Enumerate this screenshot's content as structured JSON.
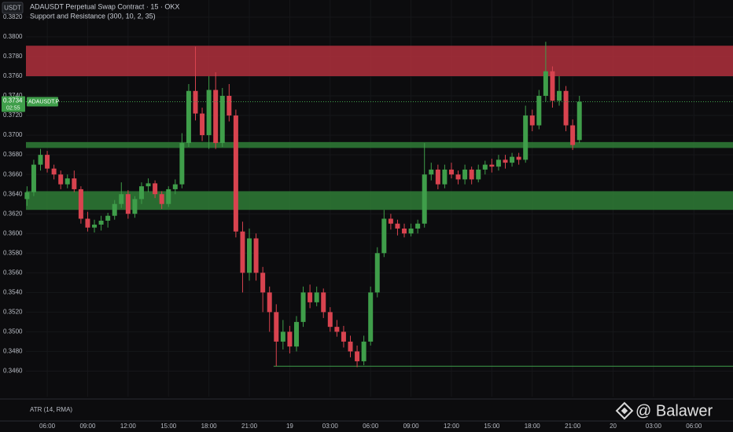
{
  "chart_data": {
    "type": "candlestick",
    "currency": "USDT",
    "title": "ADAUSDT Perpetual Swap Contract · 15 · OKX",
    "subtitle": "Support and Resistance (300, 10, 2, 35)",
    "symbol": "ADAUSDT.P",
    "last_price": 0.3734,
    "countdown": "02:55",
    "indicator": "ATR (14, RMA)",
    "watermark": "@ Balawer",
    "up_color": "#3f9e4a",
    "down_color": "#d8434f",
    "ylim": [
      0.3434,
      0.38375
    ],
    "yticks": [
      {
        "value": 0.346,
        "label": "0.3460"
      },
      {
        "value": 0.348,
        "label": "0.3480"
      },
      {
        "value": 0.35,
        "label": "0.3500"
      },
      {
        "value": 0.352,
        "label": "0.3520"
      },
      {
        "value": 0.354,
        "label": "0.3540"
      },
      {
        "value": 0.356,
        "label": "0.3560"
      },
      {
        "value": 0.358,
        "label": "0.3580"
      },
      {
        "value": 0.36,
        "label": "0.3600"
      },
      {
        "value": 0.362,
        "label": "0.3620"
      },
      {
        "value": 0.364,
        "label": "0.3640"
      },
      {
        "value": 0.366,
        "label": "0.3660"
      },
      {
        "value": 0.368,
        "label": "0.3680"
      },
      {
        "value": 0.37,
        "label": "0.3700"
      },
      {
        "value": 0.372,
        "label": "0.3720"
      },
      {
        "value": 0.374,
        "label": "0.3740"
      },
      {
        "value": 0.376,
        "label": "0.3760"
      },
      {
        "value": 0.378,
        "label": "0.3780"
      },
      {
        "value": 0.38,
        "label": "0.3800"
      },
      {
        "value": 0.382,
        "label": "0.3820"
      }
    ],
    "xlim": [
      -1.58,
      50.9
    ],
    "xticks": [
      {
        "value": 0,
        "label": "06:00"
      },
      {
        "value": 3,
        "label": "09:00"
      },
      {
        "value": 6,
        "label": "12:00"
      },
      {
        "value": 9,
        "label": "15:00"
      },
      {
        "value": 12,
        "label": "18:00"
      },
      {
        "value": 15,
        "label": "21:00"
      },
      {
        "value": 18,
        "label": "19"
      },
      {
        "value": 21,
        "label": "03:00"
      },
      {
        "value": 24,
        "label": "06:00"
      },
      {
        "value": 27,
        "label": "09:00"
      },
      {
        "value": 30,
        "label": "12:00"
      },
      {
        "value": 33,
        "label": "15:00"
      },
      {
        "value": 36,
        "label": "18:00"
      },
      {
        "value": 39,
        "label": "21:00"
      },
      {
        "value": 42,
        "label": "20"
      },
      {
        "value": 45,
        "label": "03:00"
      },
      {
        "value": 48,
        "label": "06:00"
      }
    ],
    "zones": [
      {
        "low": 0.376,
        "high": 0.3791,
        "color": "#b0303c"
      },
      {
        "low": 0.3687,
        "high": 0.3693,
        "color": "#2f7d36"
      },
      {
        "low": 0.3624,
        "high": 0.3643,
        "color": "#2f7d36"
      }
    ],
    "support_line": {
      "value": 0.3465,
      "from": 16.8,
      "color": "#3f9e4a"
    },
    "candles": [
      [
        -1.5,
        0.3635,
        0.3648,
        0.3628,
        0.3642
      ],
      [
        -1,
        0.3642,
        0.3675,
        0.3638,
        0.367
      ],
      [
        -0.5,
        0.367,
        0.3686,
        0.3664,
        0.368
      ],
      [
        0,
        0.368,
        0.3684,
        0.3662,
        0.3666
      ],
      [
        0.5,
        0.3666,
        0.367,
        0.3655,
        0.366
      ],
      [
        1,
        0.366,
        0.3664,
        0.3645,
        0.365
      ],
      [
        1.5,
        0.365,
        0.366,
        0.3646,
        0.3656
      ],
      [
        2,
        0.3656,
        0.3664,
        0.3642,
        0.3645
      ],
      [
        2.5,
        0.3645,
        0.3648,
        0.361,
        0.3615
      ],
      [
        3,
        0.3615,
        0.3622,
        0.3602,
        0.3606
      ],
      [
        3.5,
        0.3606,
        0.3614,
        0.3601,
        0.3609
      ],
      [
        4,
        0.3609,
        0.3618,
        0.3603,
        0.3613
      ],
      [
        4.5,
        0.3613,
        0.3621,
        0.3606,
        0.3618
      ],
      [
        5,
        0.3618,
        0.3634,
        0.3614,
        0.363
      ],
      [
        5.5,
        0.363,
        0.3652,
        0.3626,
        0.364
      ],
      [
        6,
        0.364,
        0.3644,
        0.3615,
        0.362
      ],
      [
        6.5,
        0.362,
        0.3638,
        0.3616,
        0.3635
      ],
      [
        7,
        0.3635,
        0.3652,
        0.363,
        0.3648
      ],
      [
        7.5,
        0.3648,
        0.3656,
        0.3642,
        0.3651
      ],
      [
        8,
        0.3651,
        0.3654,
        0.3636,
        0.364
      ],
      [
        8.5,
        0.364,
        0.3643,
        0.3625,
        0.363
      ],
      [
        9,
        0.363,
        0.3648,
        0.3627,
        0.3645
      ],
      [
        9.5,
        0.3645,
        0.3655,
        0.364,
        0.365
      ],
      [
        10,
        0.365,
        0.3702,
        0.3646,
        0.3692
      ],
      [
        10.5,
        0.3692,
        0.3752,
        0.3688,
        0.3745
      ],
      [
        11,
        0.3745,
        0.379,
        0.3715,
        0.3722
      ],
      [
        11.5,
        0.3722,
        0.3728,
        0.3694,
        0.37
      ],
      [
        12,
        0.37,
        0.376,
        0.3686,
        0.3746
      ],
      [
        12.5,
        0.3746,
        0.3764,
        0.3686,
        0.3692
      ],
      [
        13,
        0.3692,
        0.3748,
        0.3688,
        0.374
      ],
      [
        13.5,
        0.374,
        0.3752,
        0.3714,
        0.372
      ],
      [
        14,
        0.372,
        0.3726,
        0.3596,
        0.3602
      ],
      [
        14.5,
        0.3602,
        0.3612,
        0.354,
        0.356
      ],
      [
        15,
        0.356,
        0.3605,
        0.3552,
        0.3595
      ],
      [
        15.5,
        0.3595,
        0.36,
        0.3552,
        0.356
      ],
      [
        16,
        0.356,
        0.3566,
        0.352,
        0.354
      ],
      [
        16.5,
        0.354,
        0.3546,
        0.35,
        0.352
      ],
      [
        17,
        0.352,
        0.3528,
        0.3465,
        0.349
      ],
      [
        17.5,
        0.349,
        0.3512,
        0.3482,
        0.35
      ],
      [
        18,
        0.35,
        0.3506,
        0.3478,
        0.3485
      ],
      [
        18.5,
        0.3485,
        0.3516,
        0.348,
        0.351
      ],
      [
        19,
        0.351,
        0.3546,
        0.3505,
        0.354
      ],
      [
        19.5,
        0.354,
        0.3548,
        0.3524,
        0.353
      ],
      [
        20,
        0.353,
        0.3546,
        0.3526,
        0.354
      ],
      [
        20.5,
        0.354,
        0.3544,
        0.3514,
        0.352
      ],
      [
        21,
        0.352,
        0.3525,
        0.35,
        0.3505
      ],
      [
        21.5,
        0.3505,
        0.3512,
        0.3495,
        0.35
      ],
      [
        22,
        0.35,
        0.3506,
        0.3484,
        0.349
      ],
      [
        22.5,
        0.349,
        0.3496,
        0.3474,
        0.348
      ],
      [
        23,
        0.348,
        0.3486,
        0.3464,
        0.347
      ],
      [
        23.5,
        0.347,
        0.3496,
        0.3466,
        0.349
      ],
      [
        24,
        0.349,
        0.3546,
        0.3486,
        0.354
      ],
      [
        24.5,
        0.354,
        0.3586,
        0.3535,
        0.358
      ],
      [
        25,
        0.358,
        0.3624,
        0.3576,
        0.3615
      ],
      [
        25.5,
        0.3615,
        0.362,
        0.3604,
        0.361
      ],
      [
        26,
        0.361,
        0.3614,
        0.3598,
        0.3605
      ],
      [
        26.5,
        0.3605,
        0.361,
        0.3596,
        0.36
      ],
      [
        27,
        0.36,
        0.361,
        0.3597,
        0.3605
      ],
      [
        27.5,
        0.3605,
        0.3614,
        0.36,
        0.361
      ],
      [
        28,
        0.361,
        0.3692,
        0.3606,
        0.366
      ],
      [
        28.5,
        0.366,
        0.3672,
        0.3654,
        0.3665
      ],
      [
        29,
        0.3665,
        0.367,
        0.3645,
        0.365
      ],
      [
        29.5,
        0.365,
        0.367,
        0.3646,
        0.3665
      ],
      [
        30,
        0.3665,
        0.3672,
        0.3656,
        0.366
      ],
      [
        30.5,
        0.366,
        0.3664,
        0.365,
        0.3655
      ],
      [
        31,
        0.3655,
        0.367,
        0.365,
        0.3665
      ],
      [
        31.5,
        0.3665,
        0.3668,
        0.365,
        0.3655
      ],
      [
        32,
        0.3655,
        0.367,
        0.3652,
        0.3665
      ],
      [
        32.5,
        0.3665,
        0.3674,
        0.366,
        0.367
      ],
      [
        33,
        0.367,
        0.3676,
        0.3662,
        0.3668
      ],
      [
        33.5,
        0.3668,
        0.368,
        0.3664,
        0.3675
      ],
      [
        34,
        0.3675,
        0.368,
        0.3666,
        0.3672
      ],
      [
        34.5,
        0.3672,
        0.3682,
        0.3668,
        0.3678
      ],
      [
        35,
        0.3678,
        0.3682,
        0.367,
        0.3675
      ],
      [
        35.5,
        0.3675,
        0.373,
        0.3672,
        0.372
      ],
      [
        36,
        0.372,
        0.3726,
        0.3704,
        0.371
      ],
      [
        36.5,
        0.371,
        0.3746,
        0.3706,
        0.374
      ],
      [
        37,
        0.374,
        0.3795,
        0.3734,
        0.3765
      ],
      [
        37.5,
        0.3765,
        0.377,
        0.3728,
        0.3735
      ],
      [
        38,
        0.3735,
        0.376,
        0.373,
        0.3745
      ],
      [
        38.5,
        0.3745,
        0.375,
        0.3704,
        0.371
      ],
      [
        39,
        0.371,
        0.3716,
        0.3685,
        0.369
      ],
      [
        39.5,
        0.3695,
        0.374,
        0.3692,
        0.3734
      ]
    ]
  }
}
